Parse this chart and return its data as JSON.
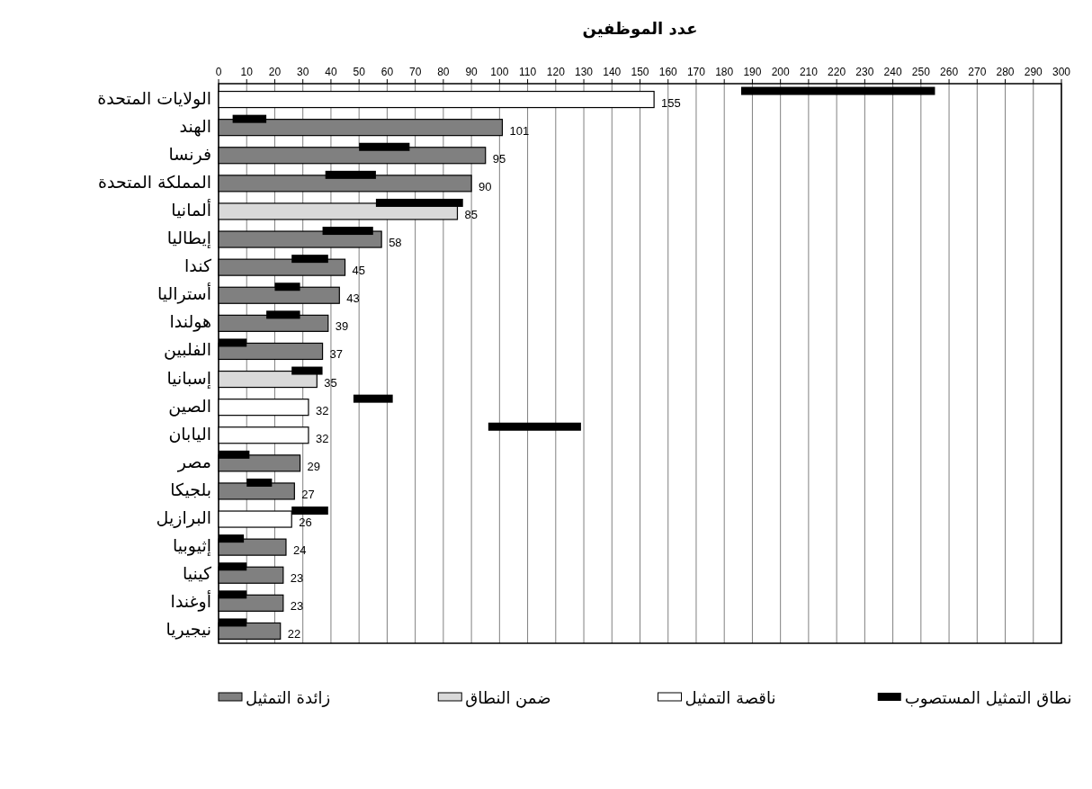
{
  "chart_data": {
    "type": "bar",
    "orientation": "horizontal",
    "title": "عدد الموظفين",
    "categories": [
      "الولايات المتحدة",
      "الهند",
      "فرنسا",
      "المملكة المتحدة",
      "ألمانيا",
      "إيطاليا",
      "كندا",
      "أستراليا",
      "هولندا",
      "الفلبين",
      "إسبانيا",
      "الصين",
      "اليابان",
      "مصر",
      "بلجيكا",
      "البرازيل",
      "إثيوبيا",
      "كينيا",
      "أوغندا",
      "نيجيريا"
    ],
    "series": [
      {
        "name": "زائدة التمثيل",
        "color": "#808080",
        "values": [
          null,
          101,
          95,
          90,
          null,
          58,
          45,
          43,
          39,
          37,
          null,
          null,
          null,
          29,
          27,
          null,
          24,
          23,
          23,
          22
        ],
        "value_labels": [
          null,
          "101",
          "95",
          "90",
          null,
          "58",
          "45",
          "43",
          "39",
          "37",
          null,
          null,
          null,
          "29",
          "27",
          null,
          "24",
          "23",
          "23",
          "22"
        ]
      },
      {
        "name": "ضمن النطاق",
        "color": "#d9d9d9",
        "values": [
          null,
          null,
          null,
          null,
          85,
          null,
          null,
          null,
          null,
          null,
          35,
          null,
          null,
          null,
          null,
          null,
          null,
          null,
          null,
          null
        ],
        "value_labels": [
          null,
          null,
          null,
          null,
          "85",
          null,
          null,
          null,
          null,
          null,
          "35",
          null,
          null,
          null,
          null,
          null,
          null,
          null,
          null,
          null
        ]
      },
      {
        "name": "ناقصة التمثيل",
        "color": "#ffffff",
        "values": [
          155,
          null,
          null,
          null,
          null,
          null,
          null,
          null,
          null,
          null,
          null,
          32,
          32,
          null,
          null,
          26,
          null,
          null,
          null,
          null
        ],
        "value_labels": [
          "155",
          null,
          null,
          null,
          null,
          null,
          null,
          null,
          null,
          null,
          null,
          "32",
          "32",
          null,
          null,
          "26",
          null,
          null,
          null,
          null
        ]
      },
      {
        "name": "نطاق التمثيل المستصوب",
        "color": "#000000",
        "base": [
          186,
          5,
          50,
          38,
          56,
          37,
          26,
          20,
          17,
          0,
          26,
          48,
          96,
          0,
          10,
          26,
          0,
          0,
          0,
          0
        ],
        "values": [
          69,
          12,
          18,
          18,
          31,
          18,
          13,
          9,
          12,
          10,
          11,
          14,
          33,
          11,
          9,
          13,
          9,
          10,
          10,
          10
        ]
      }
    ],
    "xlim": [
      0,
      300
    ],
    "xticks": [
      0,
      10,
      20,
      30,
      40,
      50,
      60,
      70,
      80,
      90,
      100,
      110,
      120,
      130,
      140,
      150,
      160,
      170,
      180,
      190,
      200,
      210,
      220,
      230,
      240,
      250,
      260,
      270,
      280,
      290,
      300
    ],
    "grid": "x",
    "legend": "bottom"
  }
}
